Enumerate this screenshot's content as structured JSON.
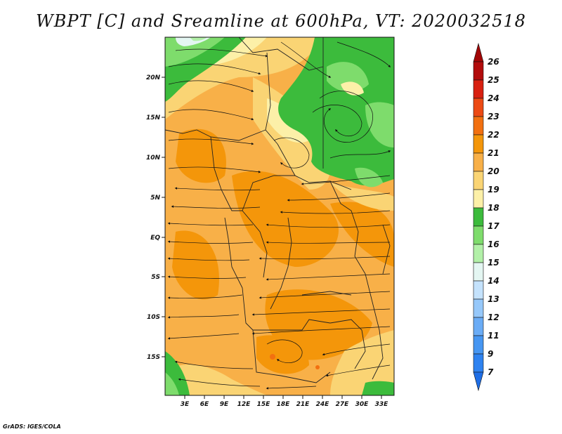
{
  "title": "WBPT [C] and Sreamline at 600hPa, VT: 2020032518",
  "credit": "GrADS: IGES/COLA",
  "lat_labels": [
    "20N",
    "15N",
    "10N",
    "5N",
    "EQ",
    "5S",
    "10S",
    "15S"
  ],
  "lon_labels": [
    "3E",
    "6E",
    "9E",
    "12E",
    "15E",
    "18E",
    "21E",
    "24E",
    "27E",
    "30E",
    "33E"
  ],
  "colorbar": {
    "labels": [
      "7",
      "9",
      "11",
      "12",
      "13",
      "14",
      "15",
      "16",
      "17",
      "18",
      "19",
      "20",
      "21",
      "22",
      "23",
      "24",
      "25",
      "26"
    ],
    "colors": [
      "#1e6ee6",
      "#2e82f0",
      "#4696f2",
      "#6aacf6",
      "#96c8fa",
      "#c4e2fc",
      "#e4f6f2",
      "#b2f0a8",
      "#7edc6c",
      "#3cbb3c",
      "#fcf0a8",
      "#fad474",
      "#f8b048",
      "#f4960a",
      "#f27010",
      "#ec4a14",
      "#d82010",
      "#b20c0c",
      "#a20606"
    ]
  },
  "map": {
    "lon_range": [
      0,
      35
    ],
    "lat_range": [
      -20,
      25
    ]
  }
}
